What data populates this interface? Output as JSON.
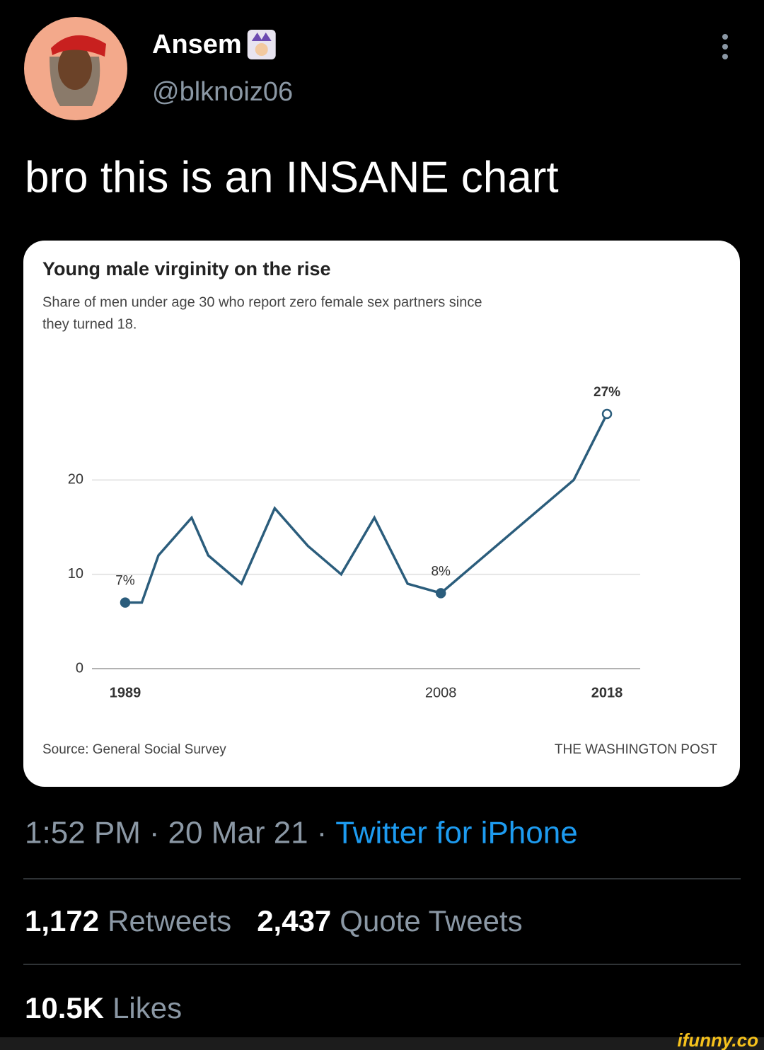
{
  "tweet": {
    "author": {
      "name": "Ansem",
      "handle": "@blknoiz06"
    },
    "text": "bro this is an INSANE chart",
    "time": "1:52 PM",
    "separator": "·",
    "date": "20 Mar 21",
    "source": "Twitter for iPhone",
    "stats": [
      {
        "count": "1,172",
        "label": "Retweets"
      },
      {
        "count": "2,437",
        "label": "Quote Tweets"
      },
      {
        "count": "10.5K",
        "label": "Likes"
      }
    ]
  },
  "chart_data": {
    "type": "line",
    "title": "Young male virginity on the rise",
    "subtitle": [
      "Share of men under age 30 who report zero female sex partners since",
      "they turned 18."
    ],
    "x": [
      1989,
      1990,
      1991,
      1993,
      1994,
      1996,
      1998,
      2000,
      2002,
      2004,
      2006,
      2008,
      2010,
      2012,
      2014,
      2016,
      2018
    ],
    "series": [
      {
        "name": "Share of men under 30 with zero partners",
        "color": "#2b5d7c",
        "values": [
          7,
          7,
          12,
          16,
          12,
          9,
          17,
          13,
          10,
          16,
          9,
          8,
          11,
          14,
          17,
          20,
          27
        ],
        "value_labels": [
          "7%",
          null,
          null,
          null,
          null,
          null,
          null,
          null,
          null,
          null,
          null,
          "8%",
          null,
          null,
          null,
          null,
          "27%"
        ]
      }
    ],
    "xlim": [
      1987,
      2020
    ],
    "xticks": [
      1989,
      2008,
      2018
    ],
    "ylim": [
      0,
      30
    ],
    "yticks": [
      0,
      10,
      20
    ],
    "grid": true,
    "source": "Source: General Social Survey",
    "credit": "THE WASHINGTON POST"
  },
  "watermark": "ifunny.co"
}
